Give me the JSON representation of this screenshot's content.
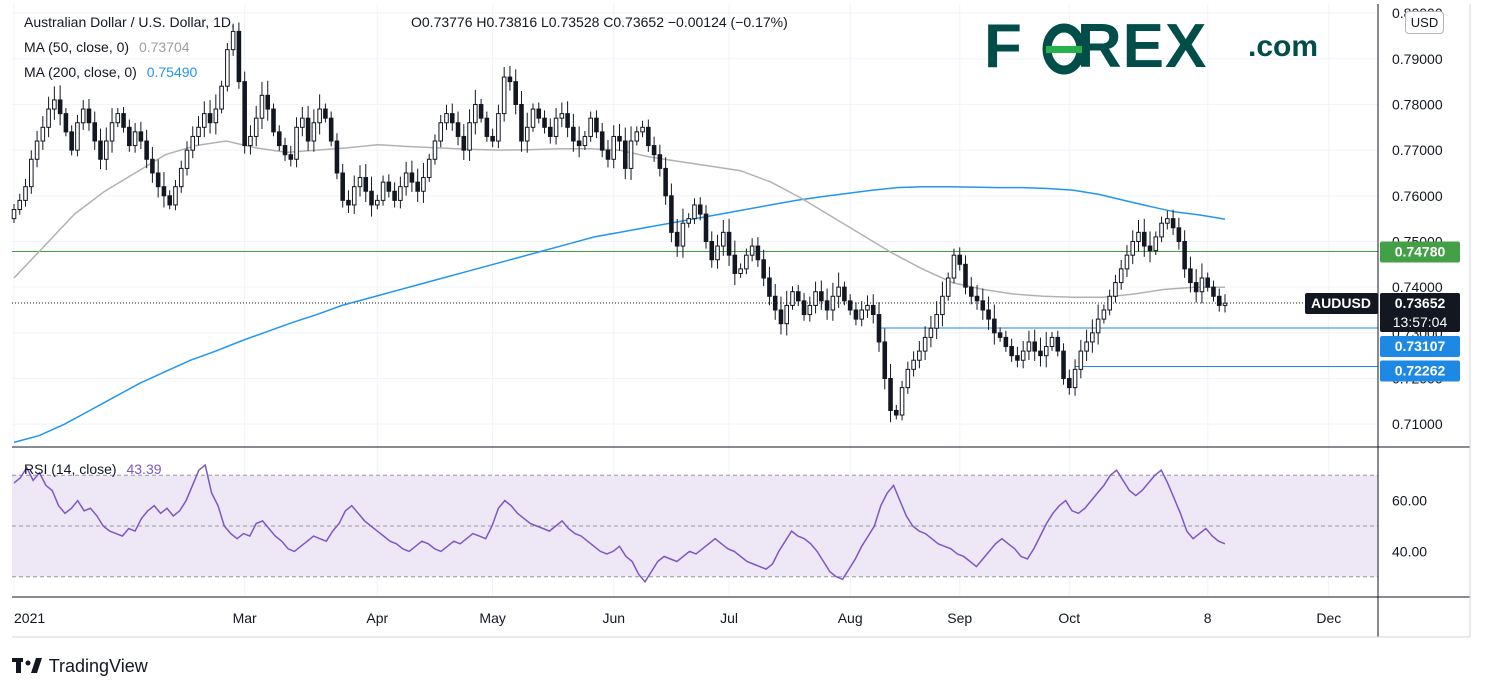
{
  "header": {
    "symbol_title": "Australian Dollar / U.S. Dollar, 1D,",
    "ohlc": "O0.73776   H0.73816   L0.73528   C0.73652   −0.00124 (−0.17%)",
    "ma50_label": "MA (50, close, 0)",
    "ma50_value": "0.73704",
    "ma200_label": "MA (200, close, 0)",
    "ma200_value": "0.75490",
    "rsi_label": "RSI (14, close)",
    "rsi_value": "43.39",
    "currency_button": "USD"
  },
  "logo": {
    "brand_left": "F",
    "brand_right": "REX",
    "brand_suffix": ".com"
  },
  "footer": {
    "brand": "TradingView"
  },
  "colors": {
    "candle": "#131722",
    "ma50": "#b2b2b2",
    "ma200": "#2196f3",
    "resistance": "#43a047",
    "support": "#1e88e5",
    "rsi": "#7e57c2",
    "rsi_band": "#ede7f6",
    "logo": "#004d4a",
    "logo_accent": "#27b14a"
  },
  "chart_data": [
    {
      "type": "candlestick",
      "symbol": "AUDUSD",
      "timeframe": "1D",
      "ylim": [
        0.705,
        0.802
      ],
      "y_ticks": [
        "0.71000",
        "0.72000",
        "0.73000",
        "0.74000",
        "0.75000",
        "0.76000",
        "0.77000",
        "0.78000",
        "0.79000",
        "0.80000"
      ],
      "x_ticks": [
        {
          "label": "2021",
          "i": 0
        },
        {
          "label": "Mar",
          "i": 40
        },
        {
          "label": "Apr",
          "i": 63
        },
        {
          "label": "May",
          "i": 83
        },
        {
          "label": "Jun",
          "i": 104
        },
        {
          "label": "Jul",
          "i": 124
        },
        {
          "label": "Aug",
          "i": 145
        },
        {
          "label": "Sep",
          "i": 164
        },
        {
          "label": "Oct",
          "i": 183
        },
        {
          "label": "8",
          "i": 207
        },
        {
          "label": "Dec",
          "i": 228
        }
      ],
      "price_labels": [
        {
          "name": "resistance",
          "value": 0.7478,
          "text": "0.74780",
          "color": "#43a047"
        },
        {
          "name": "current",
          "value": 0.73652,
          "text": "0.73652",
          "ticker": "AUDUSD",
          "countdown": "13:57:04",
          "color": "#131722"
        },
        {
          "name": "support-1",
          "value": 0.73107,
          "text": "0.73107",
          "color": "#1e88e5"
        },
        {
          "name": "support-2",
          "value": 0.72262,
          "text": "0.72262",
          "color": "#1e88e5"
        }
      ],
      "close": [
        0.757,
        0.759,
        0.762,
        0.768,
        0.772,
        0.775,
        0.779,
        0.781,
        0.778,
        0.774,
        0.77,
        0.776,
        0.779,
        0.776,
        0.772,
        0.768,
        0.772,
        0.776,
        0.778,
        0.775,
        0.771,
        0.774,
        0.772,
        0.768,
        0.765,
        0.762,
        0.76,
        0.758,
        0.762,
        0.766,
        0.77,
        0.773,
        0.775,
        0.778,
        0.776,
        0.779,
        0.784,
        0.792,
        0.796,
        0.785,
        0.771,
        0.773,
        0.777,
        0.782,
        0.779,
        0.774,
        0.771,
        0.769,
        0.768,
        0.775,
        0.777,
        0.772,
        0.776,
        0.779,
        0.777,
        0.772,
        0.765,
        0.759,
        0.758,
        0.762,
        0.764,
        0.761,
        0.758,
        0.759,
        0.763,
        0.761,
        0.759,
        0.762,
        0.765,
        0.763,
        0.761,
        0.764,
        0.768,
        0.772,
        0.776,
        0.778,
        0.776,
        0.773,
        0.77,
        0.776,
        0.78,
        0.777,
        0.773,
        0.772,
        0.778,
        0.786,
        0.785,
        0.78,
        0.772,
        0.775,
        0.779,
        0.777,
        0.775,
        0.773,
        0.777,
        0.778,
        0.775,
        0.772,
        0.771,
        0.773,
        0.777,
        0.774,
        0.77,
        0.768,
        0.773,
        0.772,
        0.766,
        0.772,
        0.774,
        0.775,
        0.771,
        0.769,
        0.766,
        0.76,
        0.752,
        0.749,
        0.754,
        0.755,
        0.758,
        0.756,
        0.75,
        0.746,
        0.749,
        0.752,
        0.747,
        0.743,
        0.744,
        0.747,
        0.749,
        0.746,
        0.742,
        0.738,
        0.735,
        0.732,
        0.736,
        0.739,
        0.737,
        0.734,
        0.736,
        0.739,
        0.737,
        0.735,
        0.738,
        0.74,
        0.737,
        0.735,
        0.733,
        0.735,
        0.736,
        0.734,
        0.728,
        0.72,
        0.713,
        0.712,
        0.718,
        0.722,
        0.724,
        0.726,
        0.729,
        0.731,
        0.734,
        0.738,
        0.742,
        0.747,
        0.745,
        0.74,
        0.738,
        0.737,
        0.735,
        0.733,
        0.73,
        0.729,
        0.727,
        0.725,
        0.724,
        0.726,
        0.728,
        0.726,
        0.725,
        0.727,
        0.729,
        0.726,
        0.72,
        0.718,
        0.722,
        0.726,
        0.728,
        0.73,
        0.733,
        0.735,
        0.738,
        0.741,
        0.744,
        0.747,
        0.75,
        0.752,
        0.749,
        0.748,
        0.751,
        0.754,
        0.755,
        0.753,
        0.75,
        0.744,
        0.741,
        0.739,
        0.742,
        0.74,
        0.738,
        0.736,
        0.7365
      ],
      "ma50": {
        "name": "MA (50, close, 0)",
        "start": 0,
        "values": [
          0.742,
          0.749,
          0.756,
          0.761,
          0.765,
          0.769,
          0.771,
          0.772,
          0.7705,
          0.7695,
          0.77,
          0.7705,
          0.7712,
          0.7708,
          0.7705,
          0.7702,
          0.77,
          0.7701,
          0.7703,
          0.7703,
          0.77,
          0.7685,
          0.7675,
          0.7665,
          0.7655,
          0.763,
          0.7595,
          0.7555,
          0.7515,
          0.7475,
          0.744,
          0.741,
          0.7395,
          0.7385,
          0.738,
          0.7378,
          0.7378,
          0.7385,
          0.7395,
          0.74,
          0.74
        ]
      },
      "ma200": {
        "name": "MA (200, close, 0)",
        "start": 0,
        "values": [
          0.706,
          0.7075,
          0.71,
          0.713,
          0.716,
          0.719,
          0.7215,
          0.724,
          0.726,
          0.7282,
          0.7302,
          0.7322,
          0.734,
          0.736,
          0.7375,
          0.739,
          0.7405,
          0.742,
          0.7435,
          0.745,
          0.7465,
          0.748,
          0.7495,
          0.751,
          0.752,
          0.753,
          0.754,
          0.755,
          0.756,
          0.757,
          0.758,
          0.759,
          0.7598,
          0.7605,
          0.7612,
          0.7618,
          0.762,
          0.762,
          0.7619,
          0.7618,
          0.7618,
          0.7616,
          0.7612,
          0.7603,
          0.759,
          0.7577,
          0.7565,
          0.7558,
          0.7549
        ]
      }
    },
    {
      "type": "line",
      "name": "RSI (14, close)",
      "ylim": [
        22,
        78
      ],
      "y_ticks": [
        "40.00",
        "60.00"
      ],
      "band": [
        30,
        70
      ],
      "midline": 50,
      "values": [
        67,
        69,
        73,
        68,
        71,
        66,
        64,
        58,
        55,
        57,
        60,
        56,
        57,
        54,
        50,
        48,
        47,
        46,
        49,
        48,
        53,
        56,
        58,
        55,
        57,
        54,
        56,
        60,
        66,
        72,
        74,
        63,
        58,
        50,
        47,
        45,
        47,
        46,
        51,
        52,
        49,
        46,
        44,
        41,
        40,
        42,
        44,
        46,
        45,
        44,
        48,
        51,
        56,
        58,
        55,
        52,
        50,
        48,
        46,
        44,
        43,
        41,
        40,
        42,
        44,
        43,
        41,
        40,
        42,
        44,
        43,
        45,
        47,
        46,
        45,
        50,
        57,
        60,
        58,
        55,
        53,
        51,
        50,
        49,
        48,
        50,
        52,
        49,
        47,
        46,
        44,
        42,
        40,
        39,
        40,
        42,
        38,
        36,
        31,
        28,
        32,
        36,
        38,
        37,
        36,
        38,
        40,
        39,
        41,
        43,
        45,
        43,
        41,
        40,
        38,
        36,
        35,
        34,
        33,
        35,
        40,
        44,
        48,
        46,
        45,
        43,
        40,
        36,
        32,
        30,
        29,
        33,
        37,
        42,
        46,
        50,
        58,
        63,
        66,
        60,
        54,
        50,
        48,
        47,
        45,
        43,
        42,
        41,
        39,
        38,
        36,
        34,
        37,
        40,
        43,
        45,
        43,
        41,
        38,
        37,
        41,
        46,
        51,
        55,
        58,
        60,
        56,
        55,
        57,
        60,
        63,
        66,
        70,
        72,
        68,
        64,
        62,
        64,
        67,
        70,
        72,
        67,
        61,
        55,
        48,
        45,
        47,
        49,
        46,
        44,
        43
      ]
    }
  ]
}
